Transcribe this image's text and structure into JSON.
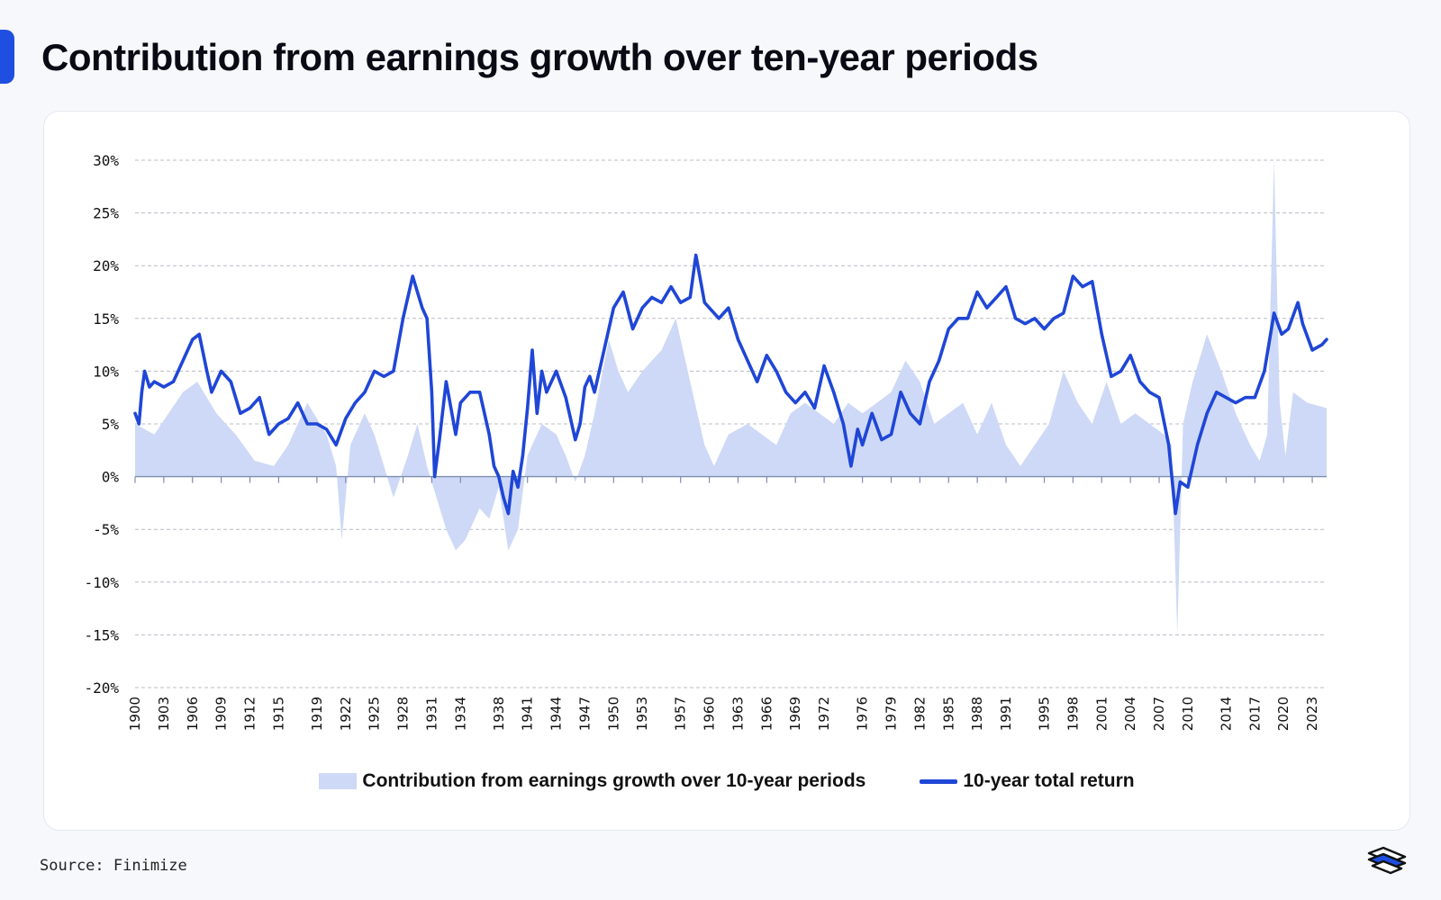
{
  "title": "Contribution from earnings growth over ten-year periods",
  "source": "Source: Finimize",
  "logo": {
    "icon": "finimize-logo-icon"
  },
  "colors": {
    "accent": "#1f4fe0",
    "area": "#cdd9f6",
    "line": "#1f46d6",
    "grid": "#b9bcc6"
  },
  "chart_data": {
    "type": "line",
    "ylim": [
      -20,
      30
    ],
    "yticks": [
      30,
      25,
      20,
      15,
      10,
      5,
      0,
      -5,
      -10,
      -15,
      -20
    ],
    "ytick_labels": [
      "30%",
      "25%",
      "20%",
      "15%",
      "10%",
      "5%",
      "0%",
      "-5%",
      "-10%",
      "-15%",
      "-20%"
    ],
    "xlim": [
      1900,
      2024.5
    ],
    "xticks": [
      1900,
      1903,
      1906,
      1909,
      1912,
      1915,
      1919,
      1922,
      1925,
      1928,
      1931,
      1934,
      1938,
      1941,
      1944,
      1947,
      1950,
      1953,
      1957,
      1960,
      1963,
      1966,
      1969,
      1972,
      1976,
      1979,
      1982,
      1985,
      1988,
      1991,
      1995,
      1998,
      2001,
      2004,
      2007,
      2010,
      2014,
      2017,
      2020,
      2023
    ],
    "grid": true,
    "legend_position": "bottom",
    "series": [
      {
        "name": "Contribution from earnings growth over 10-year periods",
        "kind": "area",
        "x": [
          1900,
          1902,
          1903.5,
          1905,
          1906.5,
          1908.5,
          1910.5,
          1912.5,
          1914.5,
          1916,
          1918,
          1920,
          1921,
          1921.6,
          1922.5,
          1924,
          1925,
          1927,
          1928.5,
          1929.5,
          1930.5,
          1931.5,
          1932.5,
          1933.5,
          1934.5,
          1936,
          1937,
          1938,
          1939,
          1940,
          1941,
          1942.5,
          1944,
          1945,
          1946,
          1947,
          1948,
          1949.5,
          1950.5,
          1951.5,
          1953,
          1955,
          1956.5,
          1958,
          1959.5,
          1960.5,
          1962,
          1964,
          1965.5,
          1967,
          1968.5,
          1970,
          1971.5,
          1973,
          1974.5,
          1976,
          1977.5,
          1979,
          1980.5,
          1982,
          1983.5,
          1985,
          1986.5,
          1988,
          1989.5,
          1991,
          1992.5,
          1994,
          1995.5,
          1997,
          1998.5,
          2000,
          2001.5,
          2003,
          2004.5,
          2006,
          2007.5,
          2008.3,
          2008.9,
          2009.5,
          2010.5,
          2012,
          2013.5,
          2015,
          2016.5,
          2017.5,
          2018.3,
          2019,
          2019.6,
          2020.2,
          2021,
          2022.5,
          2024.5
        ],
        "values": [
          5.0,
          4.0,
          6.0,
          8.0,
          9.0,
          6.0,
          4.0,
          1.5,
          1.0,
          3.0,
          7.0,
          4.0,
          1.0,
          -6.0,
          3.0,
          6.0,
          4.0,
          -2.0,
          2.0,
          5.0,
          1.0,
          -2.0,
          -5.0,
          -7.0,
          -6.0,
          -3.0,
          -4.0,
          -1.0,
          -7.0,
          -5.0,
          2.0,
          5.0,
          4.0,
          2.0,
          -0.5,
          2.0,
          6.0,
          13.0,
          10.0,
          8.0,
          10.0,
          12.0,
          15.0,
          9.0,
          3.0,
          1.0,
          4.0,
          5.0,
          4.0,
          3.0,
          6.0,
          7.0,
          6.0,
          5.0,
          7.0,
          6.0,
          7.0,
          8.0,
          11.0,
          9.0,
          5.0,
          6.0,
          7.0,
          4.0,
          7.0,
          3.0,
          1.0,
          3.0,
          5.0,
          10.0,
          7.0,
          5.0,
          9.0,
          5.0,
          6.0,
          5.0,
          4.0,
          3.0,
          -15.0,
          5.0,
          9.0,
          13.5,
          10.0,
          6.0,
          3.0,
          1.5,
          4.0,
          30.0,
          7.0,
          2.0,
          8.0,
          7.0,
          6.5
        ]
      },
      {
        "name": "10-year total return",
        "kind": "line",
        "x": [
          1900,
          1900.4,
          1900.7,
          1901,
          1901.5,
          1902,
          1903,
          1904,
          1905,
          1906,
          1906.7,
          1907.5,
          1908,
          1909,
          1910,
          1911,
          1912,
          1913,
          1914,
          1915,
          1916,
          1917,
          1918,
          1919,
          1920,
          1921,
          1922,
          1923,
          1924,
          1925,
          1926,
          1927,
          1928,
          1929,
          1930,
          1930.5,
          1931,
          1931.3,
          1931.8,
          1932.5,
          1933.5,
          1934,
          1935,
          1936,
          1937,
          1937.5,
          1938,
          1938.5,
          1939,
          1939.5,
          1940,
          1940.5,
          1941,
          1941.5,
          1942,
          1942.5,
          1943,
          1944,
          1945,
          1946,
          1946.5,
          1947,
          1947.5,
          1948,
          1949,
          1950,
          1951,
          1952,
          1953,
          1954,
          1955,
          1956,
          1957,
          1958,
          1958.6,
          1959.5,
          1960,
          1961,
          1962,
          1963,
          1964,
          1965,
          1966,
          1967,
          1968,
          1969,
          1970,
          1971,
          1972,
          1973,
          1974,
          1974.8,
          1975.5,
          1976,
          1977,
          1978,
          1979,
          1980,
          1981,
          1982,
          1983,
          1984,
          1985,
          1986,
          1987,
          1988,
          1989,
          1990,
          1991,
          1992,
          1993,
          1994,
          1995,
          1996,
          1997,
          1998,
          1999,
          2000,
          2001,
          2002,
          2003,
          2004,
          2005,
          2006,
          2007,
          2008,
          2008.7,
          2009.2,
          2010,
          2011,
          2012,
          2013,
          2014,
          2015,
          2016,
          2017,
          2018,
          2019,
          2019.8,
          2020.5,
          2021.5,
          2022,
          2023,
          2024,
          2024.5
        ],
        "values": [
          6.0,
          5.0,
          8.0,
          10.0,
          8.5,
          9.0,
          8.5,
          9.0,
          11.0,
          13.0,
          13.5,
          10.0,
          8.0,
          10.0,
          9.0,
          6.0,
          6.5,
          7.5,
          4.0,
          5.0,
          5.5,
          7.0,
          5.0,
          5.0,
          4.5,
          3.0,
          5.5,
          7.0,
          8.0,
          10.0,
          9.5,
          10.0,
          15.0,
          19.0,
          16.0,
          15.0,
          8.0,
          0.0,
          3.5,
          9.0,
          4.0,
          7.0,
          8.0,
          8.0,
          4.0,
          1.0,
          0.0,
          -2.0,
          -3.5,
          0.5,
          -1.0,
          2.0,
          6.5,
          12.0,
          6.0,
          10.0,
          8.0,
          10.0,
          7.5,
          3.5,
          5.0,
          8.5,
          9.5,
          8.0,
          12.0,
          16.0,
          17.5,
          14.0,
          16.0,
          17.0,
          16.5,
          18.0,
          16.5,
          17.0,
          21.0,
          16.5,
          16.0,
          15.0,
          16.0,
          13.0,
          11.0,
          9.0,
          11.5,
          10.0,
          8.0,
          7.0,
          8.0,
          6.5,
          10.5,
          8.0,
          5.0,
          1.0,
          4.5,
          3.0,
          6.0,
          3.5,
          4.0,
          8.0,
          6.0,
          5.0,
          9.0,
          11.0,
          14.0,
          15.0,
          15.0,
          17.5,
          16.0,
          17.0,
          18.0,
          15.0,
          14.5,
          15.0,
          14.0,
          15.0,
          15.5,
          19.0,
          18.0,
          18.5,
          13.5,
          9.5,
          10.0,
          11.5,
          9.0,
          8.0,
          7.5,
          3.0,
          -3.5,
          -0.5,
          -1.0,
          3.0,
          6.0,
          8.0,
          7.5,
          7.0,
          7.5,
          7.5,
          10.0,
          15.5,
          13.5,
          14.0,
          16.5,
          14.5,
          12.0,
          12.5,
          13.0
        ]
      }
    ]
  }
}
